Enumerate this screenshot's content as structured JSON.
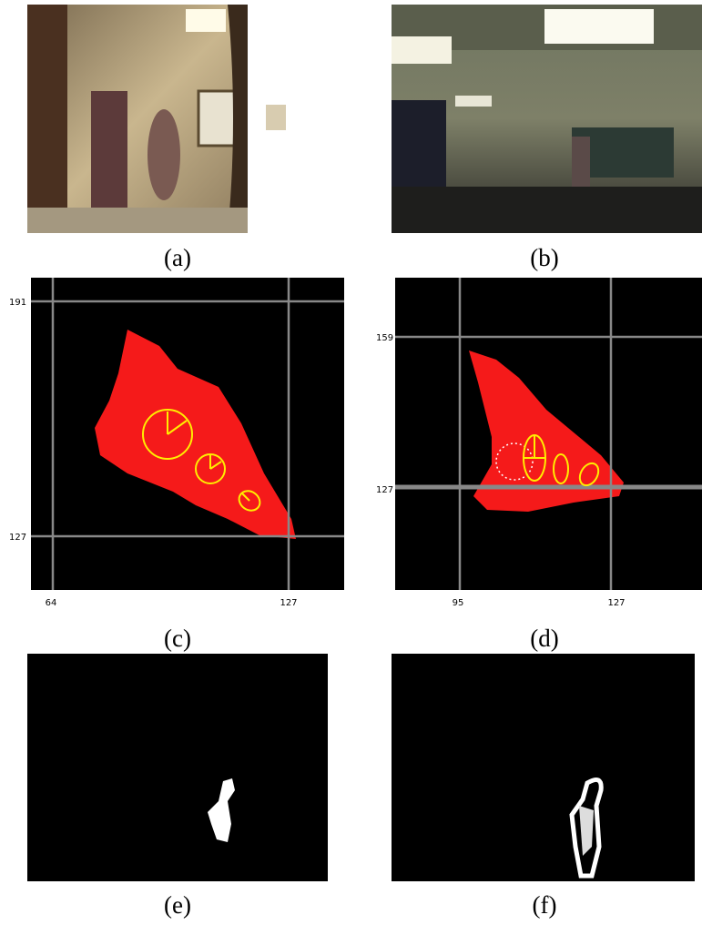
{
  "panels": [
    {
      "label": "(a)"
    },
    {
      "label": "(b)"
    },
    {
      "label": "(c)",
      "yticks": [
        191,
        127
      ],
      "xticks": [
        64,
        127
      ]
    },
    {
      "label": "(d)",
      "yticks": [
        159,
        127
      ],
      "xticks": [
        95,
        127
      ]
    },
    {
      "label": "(e)"
    },
    {
      "label": "(f)"
    }
  ]
}
